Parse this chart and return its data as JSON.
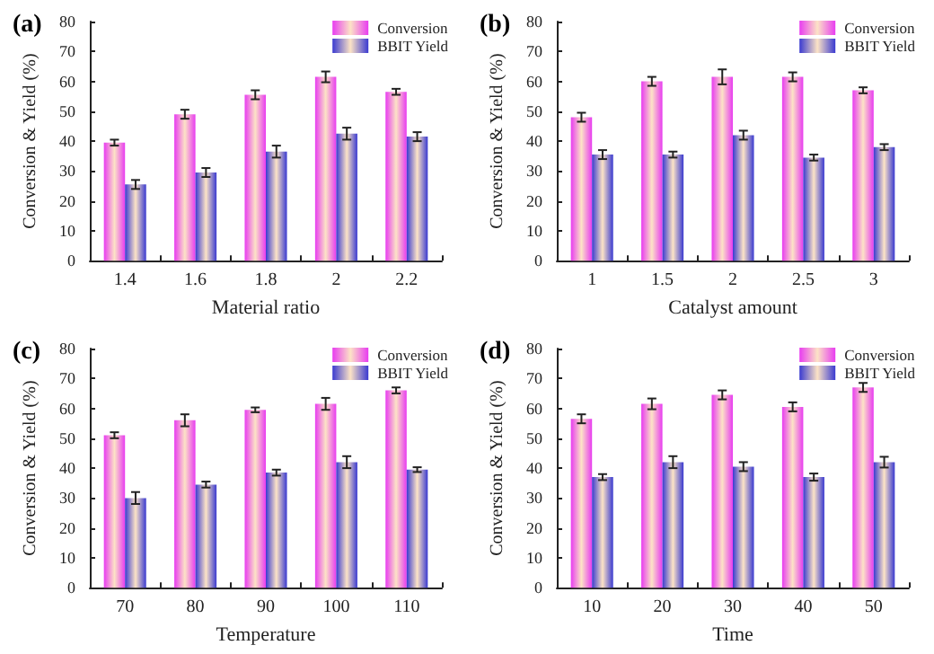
{
  "chart_data": [
    {
      "type": "bar",
      "title": "(a)",
      "xlabel": "Material ratio",
      "ylabel": "Conversion & Yield (%)",
      "categories": [
        "1.4",
        "1.6",
        "1.8",
        "2",
        "2.2"
      ],
      "ylim": [
        0,
        80
      ],
      "yticks": [
        0,
        10,
        20,
        30,
        40,
        50,
        60,
        70,
        80
      ],
      "legend": "top right",
      "grid": false,
      "series": [
        {
          "name": "Conversion",
          "color": "#e83cf0",
          "values": [
            39.5,
            49,
            55.5,
            61.5,
            56.5
          ],
          "errors": [
            1,
            1.5,
            1.5,
            1.8,
            1
          ]
        },
        {
          "name": "BBIT Yield",
          "color": "#3a3ad0",
          "values": [
            25.5,
            29.5,
            36.5,
            42.5,
            41.5
          ],
          "errors": [
            1.5,
            1.5,
            2,
            2,
            1.5
          ]
        }
      ]
    },
    {
      "type": "bar",
      "title": "(b)",
      "xlabel": "Catalyst amount",
      "ylabel": "Conversion & Yield (%)",
      "categories": [
        "1",
        "1.5",
        "2",
        "2.5",
        "3"
      ],
      "ylim": [
        0,
        80
      ],
      "yticks": [
        0,
        10,
        20,
        30,
        40,
        50,
        60,
        70,
        80
      ],
      "legend": "top right",
      "grid": false,
      "series": [
        {
          "name": "Conversion",
          "color": "#e83cf0",
          "values": [
            48,
            60,
            61.5,
            61.5,
            57
          ],
          "errors": [
            1.5,
            1.5,
            2.5,
            1.5,
            1
          ]
        },
        {
          "name": "BBIT Yield",
          "color": "#3a3ad0",
          "values": [
            35.5,
            35.5,
            42,
            34.5,
            38
          ],
          "errors": [
            1.5,
            1,
            1.5,
            1,
            1
          ]
        }
      ]
    },
    {
      "type": "bar",
      "title": "(c)",
      "xlabel": "Temperature",
      "ylabel": "Conversion & Yield (%)",
      "categories": [
        "70",
        "80",
        "90",
        "100",
        "110"
      ],
      "ylim": [
        0,
        80
      ],
      "yticks": [
        0,
        10,
        20,
        30,
        40,
        50,
        60,
        70,
        80
      ],
      "legend": "top right",
      "grid": false,
      "series": [
        {
          "name": "Conversion",
          "color": "#e83cf0",
          "values": [
            51,
            56,
            59.5,
            61.5,
            66
          ],
          "errors": [
            1,
            2,
            0.8,
            2,
            1
          ]
        },
        {
          "name": "BBIT Yield",
          "color": "#3a3ad0",
          "values": [
            30,
            34.5,
            38.5,
            42,
            39.5
          ],
          "errors": [
            2,
            1,
            1,
            2,
            0.8
          ]
        }
      ]
    },
    {
      "type": "bar",
      "title": "(d)",
      "xlabel": "Time",
      "ylabel": "Conversion & Yield (%)",
      "categories": [
        "10",
        "20",
        "30",
        "40",
        "50"
      ],
      "ylim": [
        0,
        80
      ],
      "yticks": [
        0,
        10,
        20,
        30,
        40,
        50,
        60,
        70,
        80
      ],
      "legend": "top right",
      "grid": false,
      "series": [
        {
          "name": "Conversion",
          "color": "#e83cf0",
          "values": [
            56.5,
            61.5,
            64.5,
            60.5,
            67
          ],
          "errors": [
            1.5,
            1.8,
            1.5,
            1.5,
            1.5
          ]
        },
        {
          "name": "BBIT Yield",
          "color": "#3a3ad0",
          "values": [
            37,
            42,
            40.5,
            37,
            42
          ],
          "errors": [
            1,
            2,
            1.5,
            1.2,
            1.8
          ]
        }
      ]
    }
  ]
}
